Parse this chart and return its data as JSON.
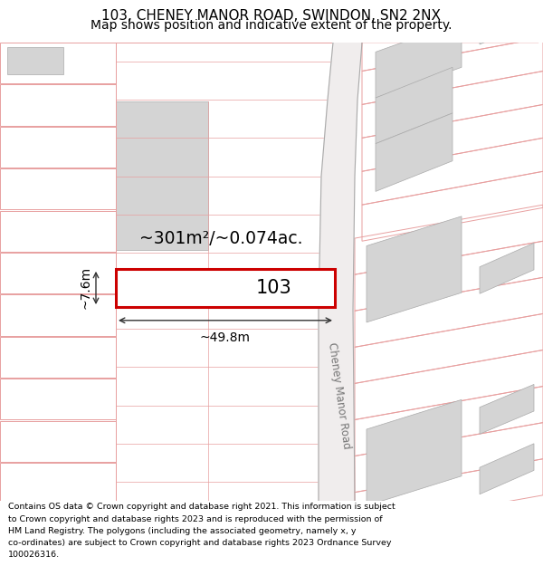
{
  "title_line1": "103, CHENEY MANOR ROAD, SWINDON, SN2 2NX",
  "title_line2": "Map shows position and indicative extent of the property.",
  "highlight_color": "#cc0000",
  "road_color": "#e8a0a0",
  "building_color": "#d4d4d4",
  "area_label": "~301m²/~0.074ac.",
  "width_label": "~49.8m",
  "height_label": "~7.6m",
  "plot_number": "103",
  "road_name": "Cheney Manor Road",
  "title_fontsize": 11,
  "subtitle_fontsize": 10,
  "footer_fontsize": 6.8,
  "map_bg_color": "#faf8f8",
  "footer_lines": [
    "Contains OS data © Crown copyright and database right 2021. This information is subject to Crown copyright and database rights 2023 and is reproduced with the permission of",
    "HM Land Registry. The polygons (including the associated geometry, namely x, y co-ordinates) are subject to Crown copyright and database rights 2023 Ordnance Survey",
    "100026316."
  ]
}
